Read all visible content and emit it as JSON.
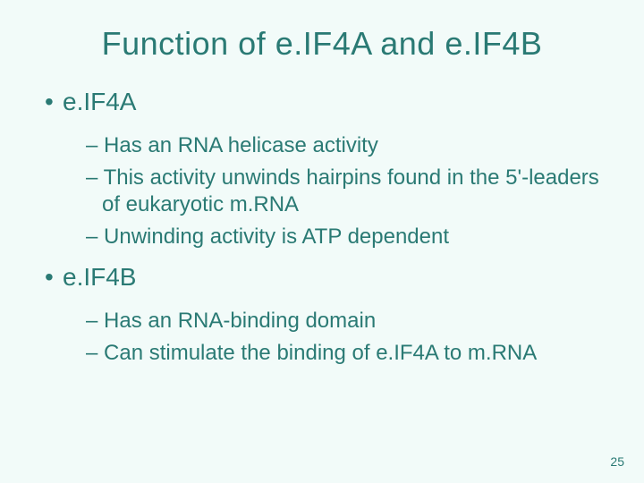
{
  "colors": {
    "background": "#f2fbf9",
    "text": "#2a7a74"
  },
  "typography": {
    "title_fontsize": 36,
    "bullet1_fontsize": 28,
    "bullet2_fontsize": 24,
    "pagenum_fontsize": 14,
    "font_family": "Arial"
  },
  "title": "Function of e.IF4A and e.IF4B",
  "sections": [
    {
      "heading": "e.IF4A",
      "items": [
        "Has an RNA helicase activity",
        "This activity unwinds hairpins found in the 5'-leaders of eukaryotic m.RNA",
        "Unwinding activity is ATP dependent"
      ]
    },
    {
      "heading": "e.IF4B",
      "items": [
        "Has an RNA-binding domain",
        "Can stimulate the binding of e.IF4A to m.RNA"
      ]
    }
  ],
  "page_number": "25"
}
